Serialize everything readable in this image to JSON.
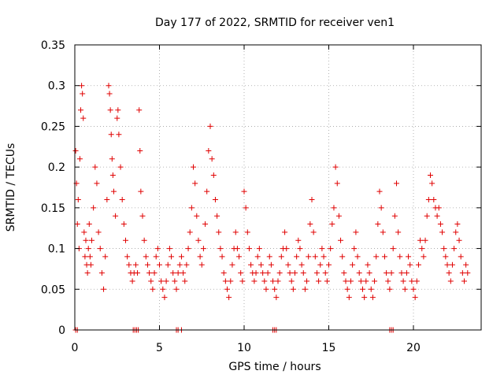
{
  "chart_data": {
    "type": "scatter",
    "title": "Day 177 of 2022, SRMTID for receiver ven1",
    "xlabel": "GPS time / hours",
    "ylabel": "SRMTID / TECUs",
    "xlim": [
      0,
      24
    ],
    "ylim": [
      0,
      0.35
    ],
    "xticks": [
      0,
      5,
      10,
      15,
      20
    ],
    "yticks": [
      0,
      0.05,
      0.1,
      0.15,
      0.2,
      0.25,
      0.3,
      0.35
    ],
    "ytick_labels": [
      "0",
      "0.05",
      "0.1",
      "0.15",
      "0.2",
      "0.25",
      "0.3",
      "0.35"
    ],
    "grid": true,
    "marker": "+",
    "color": "#e00000",
    "series": [
      {
        "name": "ven1",
        "points": [
          [
            0.05,
            0.22
          ],
          [
            0.1,
            0.18
          ],
          [
            0.15,
            0.13
          ],
          [
            0.2,
            0.16
          ],
          [
            0.25,
            0.1
          ],
          [
            0.3,
            0.21
          ],
          [
            0.35,
            0.27
          ],
          [
            0.4,
            0.3
          ],
          [
            0.45,
            0.29
          ],
          [
            0.5,
            0.26
          ],
          [
            0.55,
            0.12
          ],
          [
            0.6,
            0.09
          ],
          [
            0.65,
            0.11
          ],
          [
            0.7,
            0.08
          ],
          [
            0.75,
            0.07
          ],
          [
            0.8,
            0.1
          ],
          [
            0.85,
            0.13
          ],
          [
            0.9,
            0.09
          ],
          [
            0.95,
            0.08
          ],
          [
            1.0,
            0.11
          ],
          [
            1.1,
            0.15
          ],
          [
            1.2,
            0.2
          ],
          [
            1.3,
            0.18
          ],
          [
            1.4,
            0.12
          ],
          [
            1.5,
            0.1
          ],
          [
            1.6,
            0.07
          ],
          [
            1.7,
            0.05
          ],
          [
            1.8,
            0.09
          ],
          [
            1.9,
            0.16
          ],
          [
            2.0,
            0.3
          ],
          [
            2.05,
            0.29
          ],
          [
            2.1,
            0.27
          ],
          [
            2.15,
            0.24
          ],
          [
            2.2,
            0.21
          ],
          [
            2.25,
            0.19
          ],
          [
            2.3,
            0.17
          ],
          [
            2.4,
            0.14
          ],
          [
            2.5,
            0.26
          ],
          [
            2.55,
            0.27
          ],
          [
            2.6,
            0.24
          ],
          [
            2.7,
            0.2
          ],
          [
            2.8,
            0.16
          ],
          [
            2.9,
            0.13
          ],
          [
            3.0,
            0.11
          ],
          [
            3.1,
            0.09
          ],
          [
            3.2,
            0.08
          ],
          [
            3.3,
            0.07
          ],
          [
            3.4,
            0.06
          ],
          [
            3.5,
            0.07
          ],
          [
            3.6,
            0.08
          ],
          [
            3.7,
            0.07
          ],
          [
            3.8,
            0.27
          ],
          [
            3.85,
            0.22
          ],
          [
            3.9,
            0.17
          ],
          [
            4.0,
            0.14
          ],
          [
            4.1,
            0.11
          ],
          [
            4.2,
            0.09
          ],
          [
            4.3,
            0.08
          ],
          [
            4.4,
            0.07
          ],
          [
            4.5,
            0.06
          ],
          [
            4.6,
            0.05
          ],
          [
            4.7,
            0.07
          ],
          [
            4.8,
            0.09
          ],
          [
            4.9,
            0.1
          ],
          [
            5.0,
            0.08
          ],
          [
            5.1,
            0.06
          ],
          [
            5.2,
            0.05
          ],
          [
            5.3,
            0.04
          ],
          [
            5.4,
            0.06
          ],
          [
            5.5,
            0.08
          ],
          [
            5.6,
            0.1
          ],
          [
            5.7,
            0.09
          ],
          [
            5.8,
            0.07
          ],
          [
            5.9,
            0.06
          ],
          [
            6.0,
            0.05
          ],
          [
            6.1,
            0.07
          ],
          [
            6.2,
            0.08
          ],
          [
            6.3,
            0.09
          ],
          [
            6.4,
            0.07
          ],
          [
            6.5,
            0.06
          ],
          [
            6.6,
            0.08
          ],
          [
            6.7,
            0.1
          ],
          [
            6.8,
            0.12
          ],
          [
            6.9,
            0.15
          ],
          [
            7.0,
            0.2
          ],
          [
            7.1,
            0.18
          ],
          [
            7.2,
            0.14
          ],
          [
            7.3,
            0.11
          ],
          [
            7.4,
            0.09
          ],
          [
            7.5,
            0.08
          ],
          [
            7.6,
            0.1
          ],
          [
            7.7,
            0.13
          ],
          [
            7.8,
            0.17
          ],
          [
            7.9,
            0.22
          ],
          [
            8.0,
            0.25
          ],
          [
            8.1,
            0.21
          ],
          [
            8.2,
            0.19
          ],
          [
            8.3,
            0.16
          ],
          [
            8.4,
            0.14
          ],
          [
            8.5,
            0.12
          ],
          [
            8.6,
            0.1
          ],
          [
            8.7,
            0.09
          ],
          [
            8.8,
            0.07
          ],
          [
            8.9,
            0.06
          ],
          [
            9.0,
            0.05
          ],
          [
            9.1,
            0.04
          ],
          [
            9.2,
            0.06
          ],
          [
            9.3,
            0.08
          ],
          [
            9.4,
            0.1
          ],
          [
            9.5,
            0.12
          ],
          [
            9.6,
            0.1
          ],
          [
            9.7,
            0.09
          ],
          [
            9.8,
            0.07
          ],
          [
            9.9,
            0.06
          ],
          [
            10.0,
            0.17
          ],
          [
            10.1,
            0.15
          ],
          [
            10.2,
            0.12
          ],
          [
            10.3,
            0.1
          ],
          [
            10.4,
            0.08
          ],
          [
            10.5,
            0.07
          ],
          [
            10.6,
            0.06
          ],
          [
            10.7,
            0.07
          ],
          [
            10.8,
            0.09
          ],
          [
            10.9,
            0.1
          ],
          [
            11.0,
            0.08
          ],
          [
            11.1,
            0.07
          ],
          [
            11.2,
            0.06
          ],
          [
            11.3,
            0.05
          ],
          [
            11.4,
            0.07
          ],
          [
            11.5,
            0.09
          ],
          [
            11.6,
            0.08
          ],
          [
            11.7,
            0.06
          ],
          [
            11.8,
            0.05
          ],
          [
            11.9,
            0.04
          ],
          [
            12.0,
            0.06
          ],
          [
            12.1,
            0.07
          ],
          [
            12.2,
            0.09
          ],
          [
            12.3,
            0.1
          ],
          [
            12.4,
            0.12
          ],
          [
            12.5,
            0.1
          ],
          [
            12.6,
            0.08
          ],
          [
            12.7,
            0.07
          ],
          [
            12.8,
            0.06
          ],
          [
            12.9,
            0.05
          ],
          [
            13.0,
            0.07
          ],
          [
            13.1,
            0.09
          ],
          [
            13.2,
            0.11
          ],
          [
            13.3,
            0.1
          ],
          [
            13.4,
            0.08
          ],
          [
            13.5,
            0.07
          ],
          [
            13.6,
            0.05
          ],
          [
            13.7,
            0.06
          ],
          [
            13.8,
            0.09
          ],
          [
            13.9,
            0.13
          ],
          [
            14.0,
            0.16
          ],
          [
            14.1,
            0.12
          ],
          [
            14.2,
            0.09
          ],
          [
            14.3,
            0.07
          ],
          [
            14.4,
            0.06
          ],
          [
            14.5,
            0.08
          ],
          [
            14.6,
            0.1
          ],
          [
            14.7,
            0.09
          ],
          [
            14.8,
            0.07
          ],
          [
            14.9,
            0.06
          ],
          [
            15.0,
            0.08
          ],
          [
            15.1,
            0.1
          ],
          [
            15.2,
            0.13
          ],
          [
            15.3,
            0.15
          ],
          [
            15.4,
            0.2
          ],
          [
            15.5,
            0.18
          ],
          [
            15.6,
            0.14
          ],
          [
            15.7,
            0.11
          ],
          [
            15.8,
            0.09
          ],
          [
            15.9,
            0.07
          ],
          [
            16.0,
            0.06
          ],
          [
            16.1,
            0.05
          ],
          [
            16.2,
            0.04
          ],
          [
            16.3,
            0.06
          ],
          [
            16.4,
            0.08
          ],
          [
            16.5,
            0.1
          ],
          [
            16.6,
            0.12
          ],
          [
            16.7,
            0.09
          ],
          [
            16.8,
            0.07
          ],
          [
            16.9,
            0.06
          ],
          [
            17.0,
            0.05
          ],
          [
            17.1,
            0.04
          ],
          [
            17.2,
            0.06
          ],
          [
            17.3,
            0.08
          ],
          [
            17.4,
            0.07
          ],
          [
            17.5,
            0.05
          ],
          [
            17.6,
            0.04
          ],
          [
            17.7,
            0.06
          ],
          [
            17.8,
            0.09
          ],
          [
            17.9,
            0.13
          ],
          [
            18.0,
            0.17
          ],
          [
            18.1,
            0.15
          ],
          [
            18.2,
            0.12
          ],
          [
            18.3,
            0.09
          ],
          [
            18.4,
            0.07
          ],
          [
            18.5,
            0.06
          ],
          [
            18.6,
            0.05
          ],
          [
            18.7,
            0.07
          ],
          [
            18.8,
            0.1
          ],
          [
            18.9,
            0.14
          ],
          [
            19.0,
            0.18
          ],
          [
            19.1,
            0.12
          ],
          [
            19.2,
            0.09
          ],
          [
            19.3,
            0.07
          ],
          [
            19.4,
            0.06
          ],
          [
            19.5,
            0.05
          ],
          [
            19.6,
            0.07
          ],
          [
            19.7,
            0.09
          ],
          [
            19.8,
            0.08
          ],
          [
            19.9,
            0.06
          ],
          [
            20.0,
            0.05
          ],
          [
            20.1,
            0.04
          ],
          [
            20.2,
            0.06
          ],
          [
            20.3,
            0.08
          ],
          [
            20.4,
            0.11
          ],
          [
            20.5,
            0.1
          ],
          [
            20.6,
            0.09
          ],
          [
            20.7,
            0.11
          ],
          [
            20.8,
            0.14
          ],
          [
            20.9,
            0.16
          ],
          [
            21.0,
            0.19
          ],
          [
            21.1,
            0.18
          ],
          [
            21.2,
            0.16
          ],
          [
            21.3,
            0.15
          ],
          [
            21.4,
            0.14
          ],
          [
            21.5,
            0.15
          ],
          [
            21.6,
            0.13
          ],
          [
            21.7,
            0.12
          ],
          [
            21.8,
            0.1
          ],
          [
            21.9,
            0.09
          ],
          [
            22.0,
            0.08
          ],
          [
            22.1,
            0.07
          ],
          [
            22.2,
            0.06
          ],
          [
            22.3,
            0.08
          ],
          [
            22.4,
            0.1
          ],
          [
            22.5,
            0.12
          ],
          [
            22.6,
            0.13
          ],
          [
            22.7,
            0.11
          ],
          [
            22.8,
            0.09
          ],
          [
            22.9,
            0.07
          ],
          [
            23.0,
            0.06
          ],
          [
            23.1,
            0.08
          ],
          [
            23.2,
            0.07
          ],
          [
            3.45,
            0
          ],
          [
            3.55,
            0
          ],
          [
            3.65,
            0
          ],
          [
            3.75,
            0
          ],
          [
            0.05,
            0
          ],
          [
            0.15,
            0
          ],
          [
            6.0,
            0
          ],
          [
            6.1,
            0
          ],
          [
            6.3,
            0
          ],
          [
            11.7,
            0
          ],
          [
            11.8,
            0
          ],
          [
            11.9,
            0
          ],
          [
            18.6,
            0
          ],
          [
            18.7,
            0
          ],
          [
            18.8,
            0
          ]
        ]
      }
    ]
  }
}
